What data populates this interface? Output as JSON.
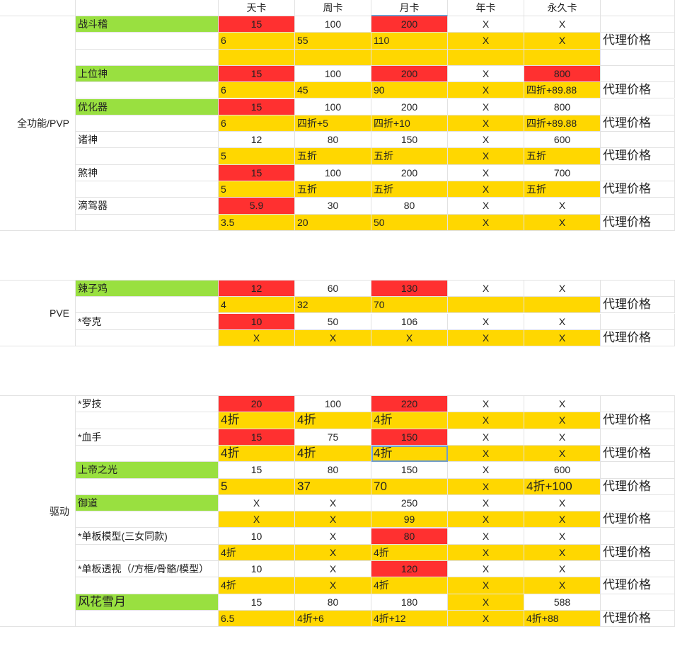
{
  "header": {
    "columns": [
      "天卡",
      "周卡",
      "月卡",
      "年卡",
      "永久卡"
    ]
  },
  "groups": [
    {
      "label": "全功能/PVP"
    },
    {
      "label": "PVE"
    },
    {
      "label": "驱动"
    }
  ],
  "rows": [
    {
      "name": "战斗稽",
      "nameStyle": "green",
      "retail": [
        "15",
        "100",
        "200",
        "X",
        "X"
      ],
      "retailBg": [
        "red",
        "",
        "red",
        "",
        ""
      ],
      "agent": [
        "6",
        "55",
        "110",
        "X",
        "X"
      ],
      "agentAlign": [
        "l",
        "l",
        "l",
        "c",
        "c"
      ],
      "spacer": true
    },
    {
      "name": "上位神",
      "nameStyle": "green",
      "retail": [
        "15",
        "100",
        "200",
        "X",
        "800"
      ],
      "retailBg": [
        "red",
        "",
        "red",
        "",
        "red"
      ],
      "agent": [
        "6",
        "45",
        "90",
        "X",
        "四折+89.88"
      ],
      "agentAlign": [
        "l",
        "l",
        "l",
        "c",
        "l"
      ]
    },
    {
      "name": "优化器",
      "nameStyle": "green",
      "retail": [
        "15",
        "100",
        "200",
        "X",
        "800"
      ],
      "retailBg": [
        "red",
        "",
        "",
        "",
        ""
      ],
      "agent": [
        "6",
        "四折+5",
        "四折+10",
        "X",
        "四折+89.88"
      ],
      "agentAlign": [
        "l",
        "l",
        "l",
        "c",
        "l"
      ]
    },
    {
      "name": "诸神",
      "nameStyle": "",
      "retail": [
        "12",
        "80",
        "150",
        "X",
        "600"
      ],
      "retailBg": [
        "",
        "",
        "",
        "",
        ""
      ],
      "agent": [
        "5",
        "五折",
        "五折",
        "X",
        "五折"
      ],
      "agentAlign": [
        "l",
        "l",
        "l",
        "c",
        "l"
      ]
    },
    {
      "name": "煞神",
      "nameStyle": "",
      "retail": [
        "15",
        "100",
        "200",
        "X",
        "700"
      ],
      "retailBg": [
        "red",
        "",
        "",
        "",
        ""
      ],
      "agent": [
        "5",
        "五折",
        "五折",
        "X",
        "五折"
      ],
      "agentAlign": [
        "l",
        "l",
        "l",
        "c",
        "l"
      ]
    },
    {
      "name": "滴驾器",
      "nameStyle": "",
      "retail": [
        "5.9",
        "30",
        "80",
        "X",
        "X"
      ],
      "retailBg": [
        "red",
        "",
        "",
        "",
        ""
      ],
      "agent": [
        "3.5",
        "20",
        "50",
        "X",
        "X"
      ],
      "agentAlign": [
        "l",
        "l",
        "l",
        "c",
        "c"
      ]
    },
    {
      "name": "辣子鸡",
      "nameStyle": "green",
      "retail": [
        "12",
        "60",
        "130",
        "X",
        "X"
      ],
      "retailBg": [
        "red",
        "",
        "red",
        "",
        ""
      ],
      "agent": [
        "4",
        "32",
        "70",
        "",
        ""
      ],
      "agentAlign": [
        "l",
        "l",
        "l",
        "c",
        "c"
      ]
    },
    {
      "name": "*夸克",
      "nameStyle": "",
      "retail": [
        "10",
        "50",
        "106",
        "X",
        "X"
      ],
      "retailBg": [
        "red",
        "",
        "",
        "",
        ""
      ],
      "agent": [
        "X",
        "X",
        "X",
        "X",
        "X"
      ],
      "agentAlign": [
        "c",
        "c",
        "c",
        "c",
        "c"
      ]
    },
    {
      "name": "*罗技",
      "nameStyle": "",
      "retail": [
        "20",
        "100",
        "220",
        "X",
        "X"
      ],
      "retailBg": [
        "red",
        "",
        "red",
        "",
        ""
      ],
      "agent": [
        "4折",
        "4折",
        "4折",
        "X",
        "X"
      ],
      "agentAlign": [
        "l",
        "l",
        "l",
        "c",
        "c"
      ],
      "agentBig": true
    },
    {
      "name": "*血手",
      "nameStyle": "",
      "retail": [
        "15",
        "75",
        "150",
        "X",
        "X"
      ],
      "retailBg": [
        "red",
        "",
        "red",
        "",
        ""
      ],
      "agent": [
        "4折",
        "4折",
        "4折",
        "X",
        "X"
      ],
      "agentAlign": [
        "l",
        "l",
        "l",
        "c",
        "c"
      ],
      "agentBig": true,
      "selected": 2
    },
    {
      "name": "上帝之光",
      "nameStyle": "green",
      "retail": [
        "15",
        "80",
        "150",
        "X",
        "600"
      ],
      "retailBg": [
        "",
        "",
        "",
        "",
        ""
      ],
      "agent": [
        "5",
        "37",
        "70",
        "X",
        "4折+100"
      ],
      "agentAlign": [
        "l",
        "l",
        "l",
        "c",
        "l"
      ],
      "agentBig": true
    },
    {
      "name": "御道",
      "nameStyle": "green",
      "retail": [
        "X",
        "X",
        "250",
        "X",
        "X"
      ],
      "retailBg": [
        "",
        "",
        "",
        "",
        ""
      ],
      "agent": [
        "X",
        "X",
        "99",
        "X",
        "X"
      ],
      "agentAlign": [
        "c",
        "c",
        "c",
        "c",
        "c"
      ]
    },
    {
      "name": "*单板模型(三女同款)",
      "nameStyle": "",
      "retail": [
        "10",
        "X",
        "80",
        "X",
        "X"
      ],
      "retailBg": [
        "",
        "",
        "red",
        "",
        ""
      ],
      "agent": [
        "4折",
        "X",
        "4折",
        "X",
        "X"
      ],
      "agentAlign": [
        "l",
        "c",
        "l",
        "c",
        "c"
      ]
    },
    {
      "name": "*单板透视（/方框/骨骼/模型）",
      "nameStyle": "",
      "retail": [
        "10",
        "X",
        "120",
        "X",
        "X"
      ],
      "retailBg": [
        "",
        "",
        "red",
        "",
        ""
      ],
      "agent": [
        "4折",
        "X",
        "4折",
        "X",
        "X"
      ],
      "agentAlign": [
        "l",
        "c",
        "l",
        "c",
        "c"
      ]
    },
    {
      "name": "风花雪月",
      "nameStyle": "green-big",
      "retail": [
        "15",
        "80",
        "180",
        "X",
        "588"
      ],
      "retailBg": [
        "",
        "",
        "",
        "yellow",
        ""
      ],
      "agent": [
        "6.5",
        "4折+6",
        "4折+12",
        "X",
        "4折+88"
      ],
      "agentAlign": [
        "l",
        "l",
        "l",
        "c",
        "l"
      ]
    }
  ],
  "agentLabel": "代理价格",
  "colors": {
    "red": "#ff3030",
    "yellow": "#ffd700",
    "green": "#99e040",
    "grid": "#e2e2e2",
    "selection": "#6f9ccc"
  }
}
